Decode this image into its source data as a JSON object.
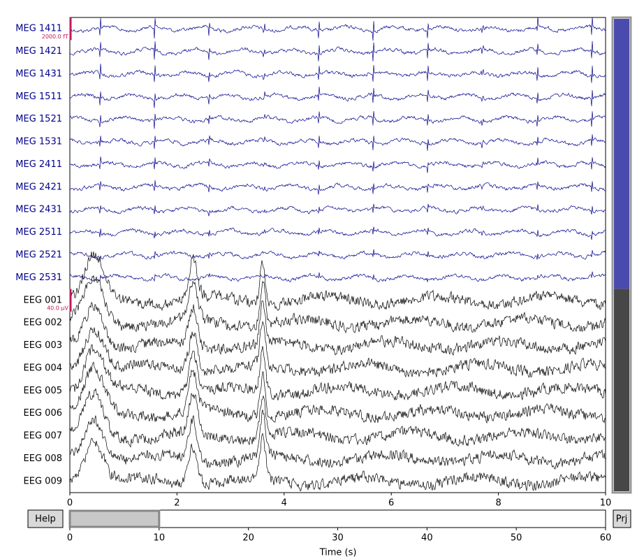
{
  "chart_data": {
    "type": "raw_traces",
    "groups": [
      {
        "color": "#00008b",
        "channels": [
          "MEG 1411",
          "MEG 1421",
          "MEG 1431",
          "MEG 1511",
          "MEG 1521",
          "MEG 1531",
          "MEG 2411",
          "MEG 2421",
          "MEG 2431",
          "MEG 2511",
          "MEG 2521",
          "MEG 2531"
        ]
      },
      {
        "color": "#000000",
        "channels": [
          "EEG 001",
          "EEG 002",
          "EEG 003",
          "EEG 004",
          "EEG 005",
          "EEG 006",
          "EEG 007",
          "EEG 008",
          "EEG 009"
        ]
      }
    ],
    "scalebars": [
      "2000.0 fT",
      "40.0 µV"
    ],
    "xlim": [
      0,
      10
    ],
    "xticks": [
      0,
      2,
      4,
      6,
      8,
      10
    ],
    "overview": {
      "xlim": [
        0,
        60
      ],
      "xticks": [
        0,
        10,
        20,
        30,
        40,
        50,
        60
      ],
      "window": [
        0,
        10
      ]
    },
    "xlabel": "Time (s)",
    "buttons": [
      "Help",
      "Prj"
    ]
  }
}
